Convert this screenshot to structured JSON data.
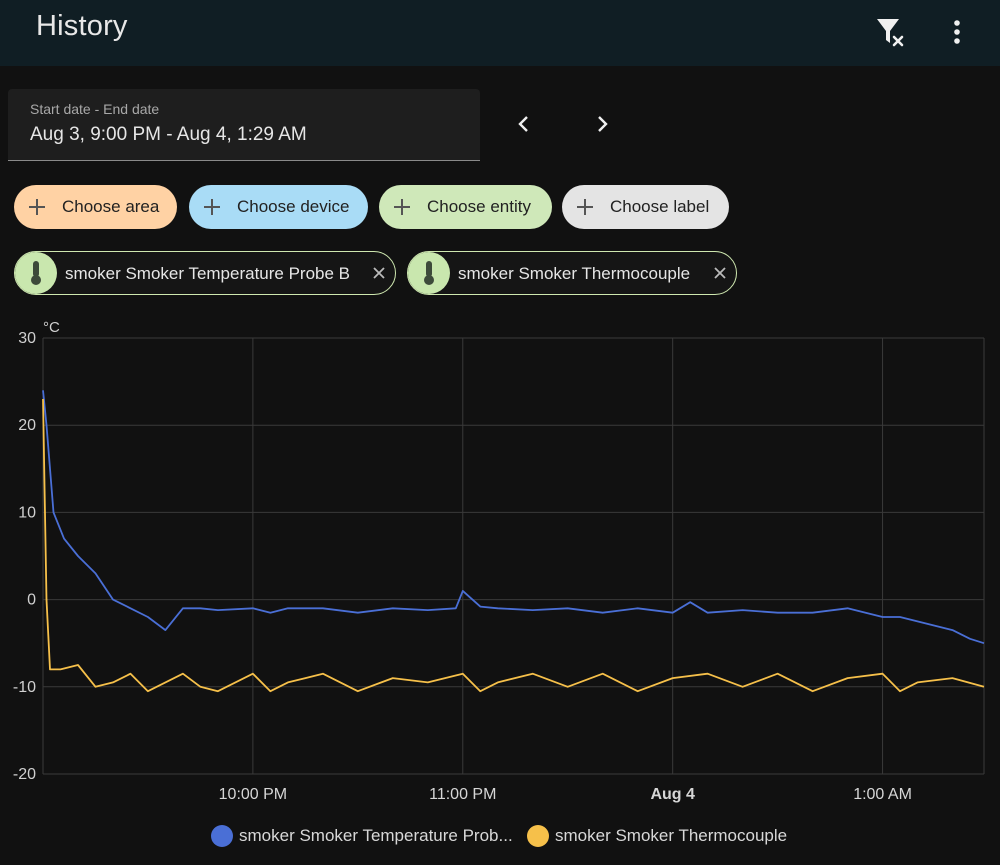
{
  "header": {
    "title": "History",
    "filter_clear_icon": "filter-remove-icon",
    "more_icon": "dots-vertical-icon"
  },
  "date_range": {
    "label": "Start date - End date",
    "value": "Aug 3, 9:00 PM - Aug 4, 1:29 AM"
  },
  "nav": {
    "prev_icon": "chevron-left-icon",
    "next_icon": "chevron-right-icon"
  },
  "target_chips": [
    {
      "label": "Choose area",
      "color": "#ffd2a4"
    },
    {
      "label": "Choose device",
      "color": "#a9dcf6"
    },
    {
      "label": "Choose entity",
      "color": "#cfe8b9"
    },
    {
      "label": "Choose label",
      "color": "#e4e4e4"
    }
  ],
  "selected_entities": [
    {
      "name": "smoker Smoker Temperature Probe B",
      "icon": "thermometer-icon"
    },
    {
      "name": "smoker Smoker Thermocouple",
      "icon": "thermometer-icon"
    }
  ],
  "chart_data": {
    "type": "line",
    "ylabel": "°C",
    "ylim": [
      -20,
      30
    ],
    "yticks": [
      "30",
      "20",
      "10",
      "0",
      "-10",
      "-20"
    ],
    "xlim": [
      "Aug 3, 9:00 PM",
      "Aug 4, 1:29 AM"
    ],
    "xticks": [
      "10:00 PM",
      "11:00 PM",
      "Aug 4",
      "1:00 AM"
    ],
    "grid": true,
    "legend_position": "bottom",
    "legend": [
      "smoker Smoker Temperature Prob...",
      "smoker Smoker Thermocouple"
    ],
    "series": [
      {
        "name": "smoker Smoker Temperature Probe B",
        "color": "#4a6fd6",
        "x": [
          "21:00",
          "21:01",
          "21:03",
          "21:06",
          "21:10",
          "21:15",
          "21:20",
          "21:25",
          "21:30",
          "21:35",
          "21:40",
          "21:45",
          "21:50",
          "22:00",
          "22:05",
          "22:10",
          "22:20",
          "22:30",
          "22:40",
          "22:50",
          "22:58",
          "23:00",
          "23:05",
          "23:10",
          "23:20",
          "23:30",
          "23:40",
          "23:50",
          "24:00",
          "24:05",
          "24:10",
          "24:20",
          "24:30",
          "24:40",
          "24:50",
          "25:00",
          "25:05",
          "25:10",
          "25:15",
          "25:20",
          "25:25",
          "25:29"
        ],
        "y": [
          24,
          20,
          10,
          7,
          5,
          3,
          0,
          -1,
          -2,
          -3.5,
          -1,
          -1,
          -1.2,
          -1,
          -1.5,
          -1,
          -1,
          -1.5,
          -1,
          -1.2,
          -1,
          1,
          -0.8,
          -1,
          -1.2,
          -1,
          -1.5,
          -1,
          -1.5,
          -0.3,
          -1.5,
          -1.2,
          -1.5,
          -1.5,
          -1,
          -2,
          -2,
          -2.5,
          -3,
          -3.5,
          -4.5,
          -5
        ]
      },
      {
        "name": "smoker Smoker Thermocouple",
        "color": "#f6c04a",
        "x": [
          "21:00",
          "21:01",
          "21:02",
          "21:05",
          "21:10",
          "21:15",
          "21:20",
          "21:25",
          "21:30",
          "21:35",
          "21:40",
          "21:45",
          "21:50",
          "22:00",
          "22:05",
          "22:10",
          "22:15",
          "22:20",
          "22:30",
          "22:40",
          "22:50",
          "23:00",
          "23:05",
          "23:10",
          "23:20",
          "23:30",
          "23:40",
          "23:50",
          "24:00",
          "24:10",
          "24:20",
          "24:30",
          "24:40",
          "24:50",
          "25:00",
          "25:05",
          "25:10",
          "25:20",
          "25:29"
        ],
        "y": [
          23,
          0,
          -8,
          -8,
          -7.5,
          -10,
          -9.5,
          -8.5,
          -10.5,
          -9.5,
          -8.5,
          -10,
          -10.5,
          -8.5,
          -10.5,
          -9.5,
          -9,
          -8.5,
          -10.5,
          -9,
          -9.5,
          -8.5,
          -10.5,
          -9.5,
          -8.5,
          -10,
          -8.5,
          -10.5,
          -9,
          -8.5,
          -10,
          -8.5,
          -10.5,
          -9,
          -8.5,
          -10.5,
          -9.5,
          -9,
          -10
        ]
      }
    ]
  }
}
